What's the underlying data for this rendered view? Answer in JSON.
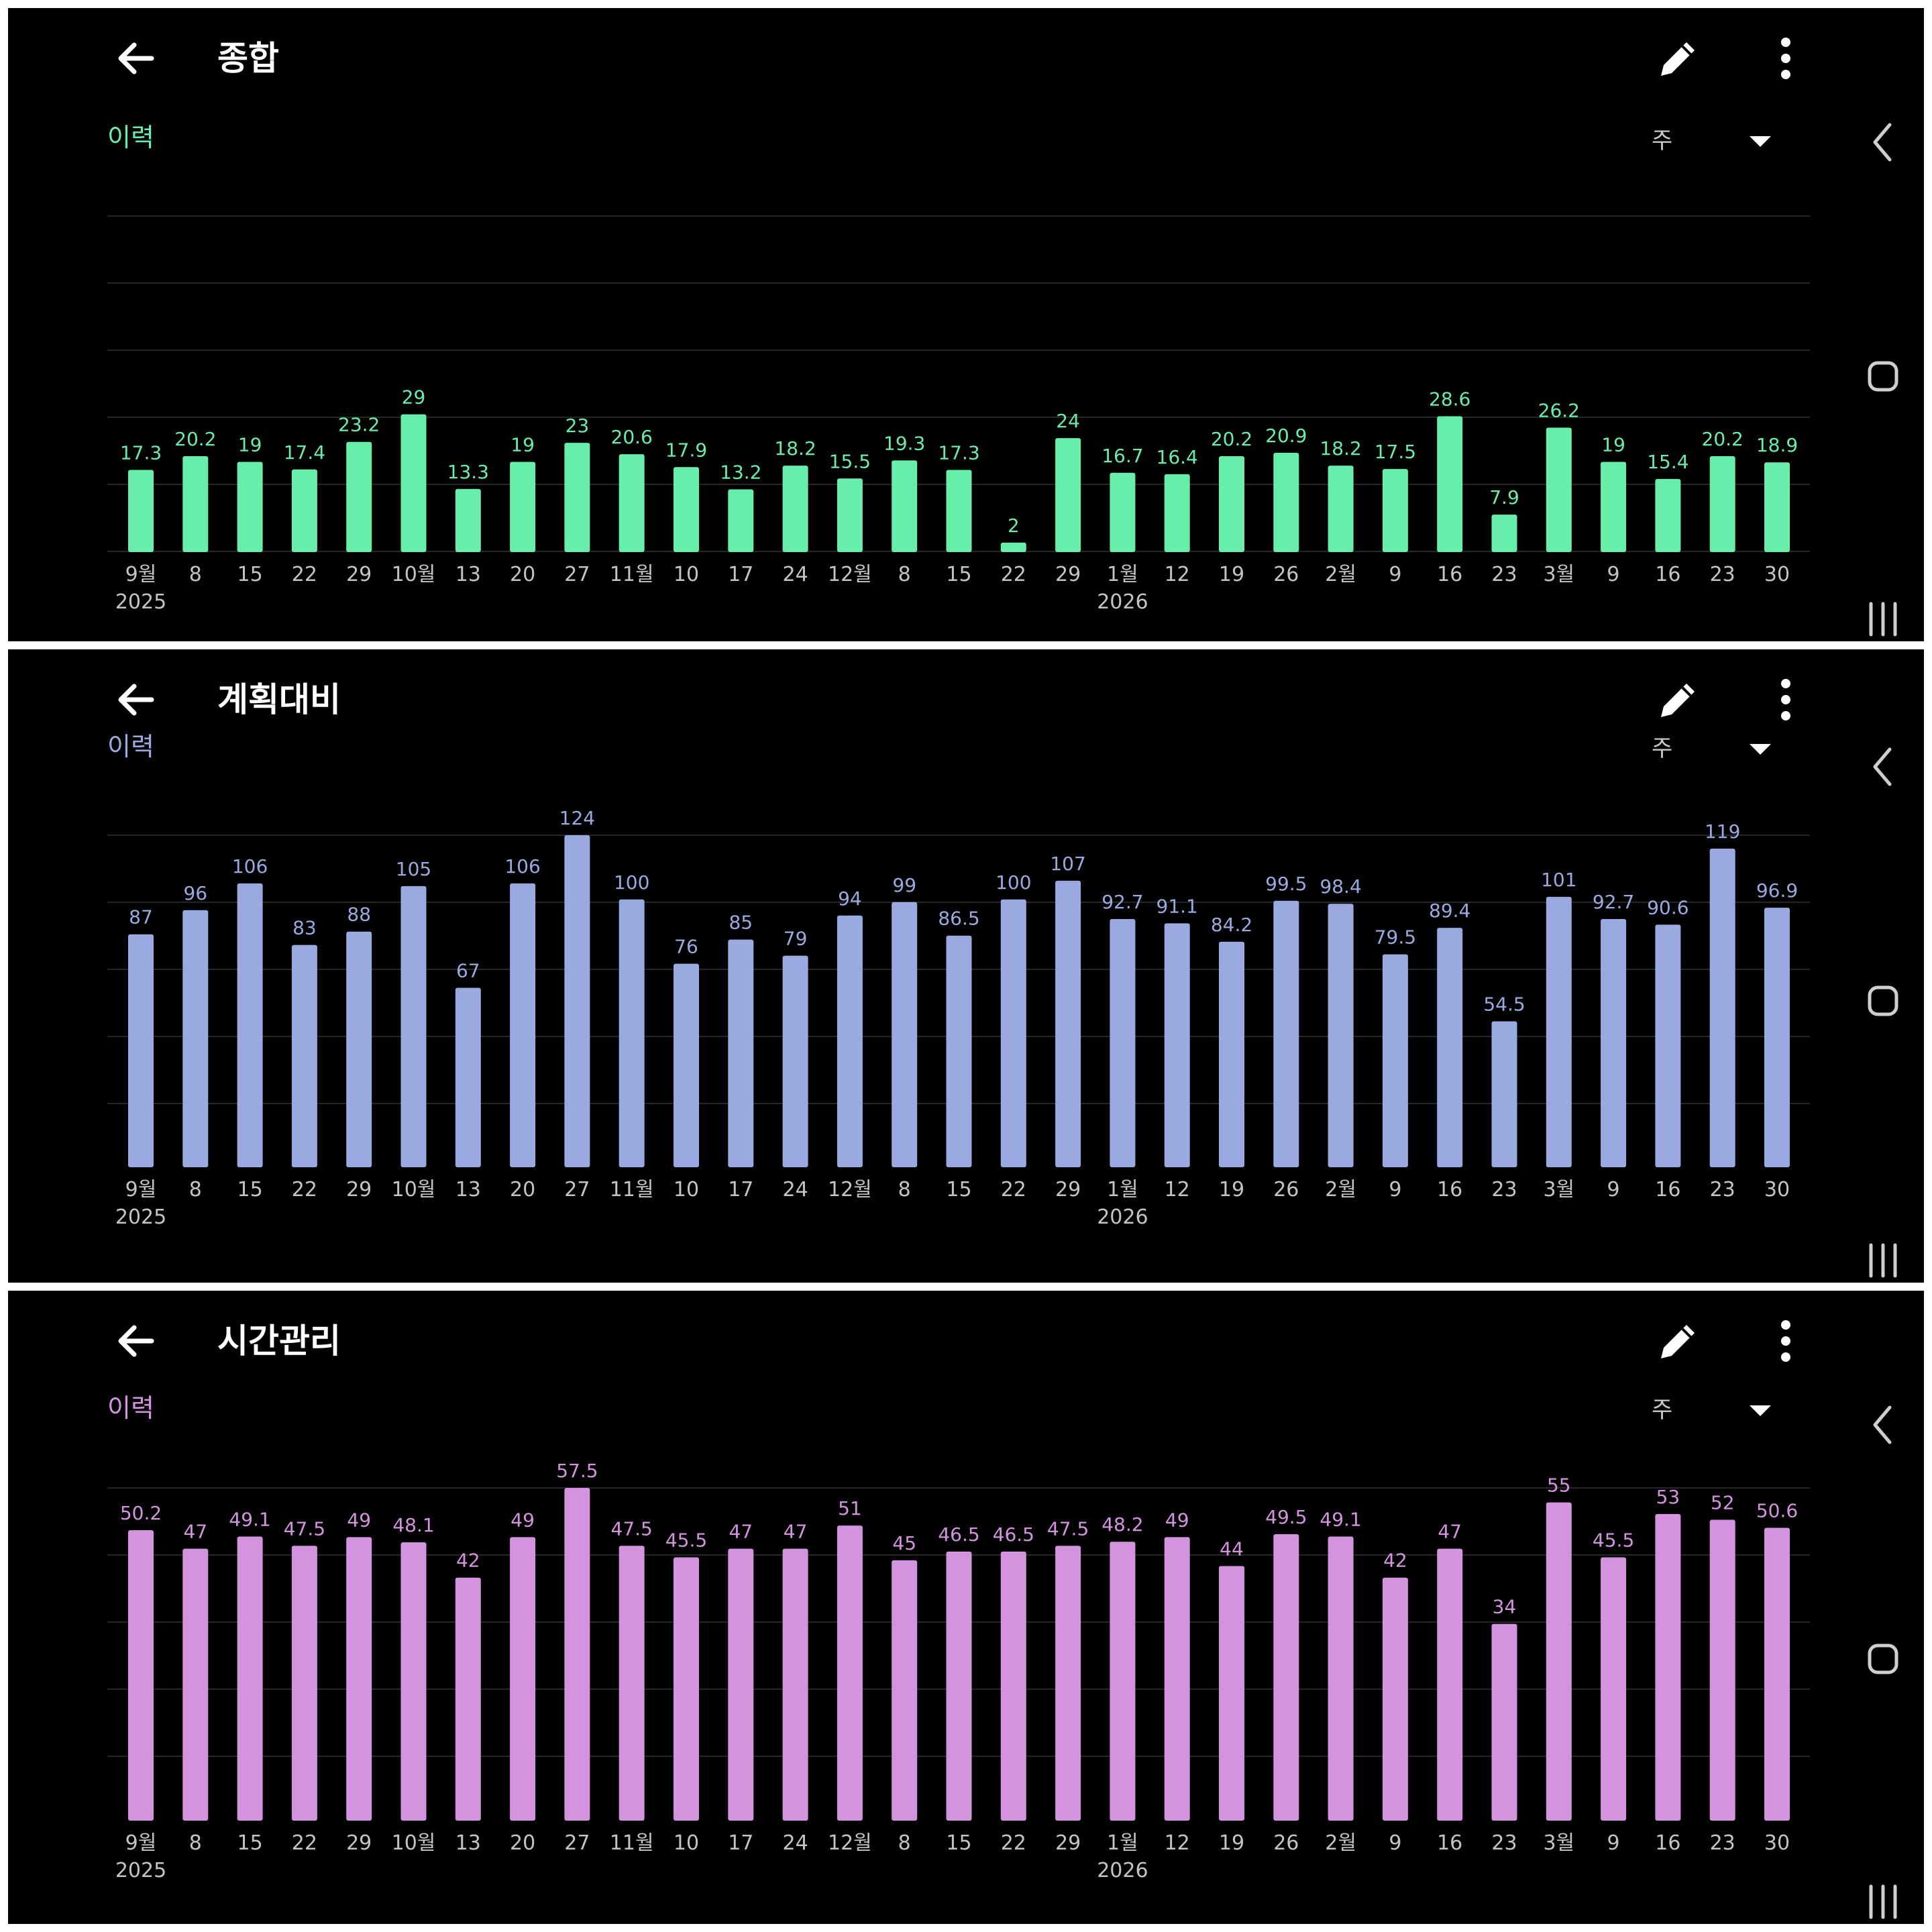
{
  "colors": {
    "panel_background": "#000000",
    "grid": "#262626",
    "axis_text": "#c4c4c4",
    "icon": "#ffffff"
  },
  "icons": {
    "back": "arrow-left-icon",
    "edit": "pencil-icon",
    "more": "more-vert-icon",
    "dropdown": "caret-down-icon",
    "nav_back": "chevron-left-icon",
    "nav_home": "rounded-square-icon",
    "nav_recent": "three-lines-icon"
  },
  "panels": [
    {
      "title": "종합",
      "history_label": "이력",
      "period": "주",
      "accent": "#66eeaa"
    },
    {
      "title": "계획대비",
      "history_label": "이력",
      "period": "주",
      "accent": "#9aaae0"
    },
    {
      "title": "시간관리",
      "history_label": "이력",
      "period": "주",
      "accent": "#d493df"
    }
  ],
  "chart_data": [
    {
      "type": "bar",
      "title": "",
      "xlabel": "",
      "ylabel": "",
      "grid": true,
      "ylim": [
        0,
        50
      ],
      "categories": [
        "9월",
        "8",
        "15",
        "22",
        "29",
        "10월",
        "13",
        "20",
        "27",
        "11월",
        "10",
        "17",
        "24",
        "12월",
        "8",
        "15",
        "22",
        "29",
        "1월",
        "12",
        "19",
        "26",
        "2월",
        "9",
        "16",
        "23",
        "3월",
        "9",
        "16",
        "23",
        "30"
      ],
      "year_labels": [
        {
          "index": 0,
          "label": "2025"
        },
        {
          "index": 18,
          "label": "2026"
        }
      ],
      "values": [
        17.3,
        20.2,
        19,
        17.4,
        23.2,
        29,
        13.3,
        19,
        23,
        20.6,
        17.9,
        13.2,
        18.2,
        15.5,
        19.3,
        17.3,
        2,
        24,
        16.7,
        16.4,
        20.2,
        20.9,
        18.2,
        17.5,
        28.6,
        7.9,
        26.2,
        19,
        15.4,
        20.2,
        18.9
      ],
      "value_labels": [
        "17.3",
        "20.2",
        "19",
        "17.4",
        "23.2",
        "29",
        "13.3",
        "19",
        "23",
        "20.6",
        "17.9",
        "13.2",
        "18.2",
        "15.5",
        "19.3",
        "17.3",
        "2",
        "24",
        "16.7",
        "16.4",
        "20.2",
        "20.9",
        "18.2",
        "17.5",
        "28.6",
        "7.9",
        "26.2",
        "19",
        "15.4",
        "20.2",
        "18.9"
      ]
    },
    {
      "type": "bar",
      "title": "",
      "xlabel": "",
      "ylabel": "",
      "grid": true,
      "ylim": [
        0,
        124
      ],
      "categories": [
        "9월",
        "8",
        "15",
        "22",
        "29",
        "10월",
        "13",
        "20",
        "27",
        "11월",
        "10",
        "17",
        "24",
        "12월",
        "8",
        "15",
        "22",
        "29",
        "1월",
        "12",
        "19",
        "26",
        "2월",
        "9",
        "16",
        "23",
        "3월",
        "9",
        "16",
        "23",
        "30"
      ],
      "year_labels": [
        {
          "index": 0,
          "label": "2025"
        },
        {
          "index": 18,
          "label": "2026"
        }
      ],
      "values": [
        87,
        96,
        106,
        83,
        88,
        105,
        67,
        106,
        124,
        100,
        76,
        85,
        79,
        94,
        99,
        86.5,
        100,
        107,
        92.7,
        91.1,
        84.2,
        99.5,
        98.4,
        79.5,
        89.4,
        54.5,
        101,
        92.7,
        90.6,
        119,
        96.9
      ],
      "value_labels": [
        "87",
        "96",
        "106",
        "83",
        "88",
        "105",
        "67",
        "106",
        "124",
        "100",
        "76",
        "85",
        "79",
        "94",
        "99",
        "86.5",
        "100",
        "107",
        "92.7",
        "91.1",
        "84.2",
        "99.5",
        "98.4",
        "79.5",
        "89.4",
        "54.5",
        "101",
        "92.7",
        "90.6",
        "119",
        "96.9"
      ]
    },
    {
      "type": "bar",
      "title": "",
      "xlabel": "",
      "ylabel": "",
      "grid": true,
      "ylim": [
        0,
        57.5
      ],
      "categories": [
        "9월",
        "8",
        "15",
        "22",
        "29",
        "10월",
        "13",
        "20",
        "27",
        "11월",
        "10",
        "17",
        "24",
        "12월",
        "8",
        "15",
        "22",
        "29",
        "1월",
        "12",
        "19",
        "26",
        "2월",
        "9",
        "16",
        "23",
        "3월",
        "9",
        "16",
        "23",
        "30"
      ],
      "year_labels": [
        {
          "index": 0,
          "label": "2025"
        },
        {
          "index": 18,
          "label": "2026"
        }
      ],
      "values": [
        50.2,
        47,
        49.1,
        47.5,
        49,
        48.1,
        42,
        49,
        57.5,
        47.5,
        45.5,
        47,
        47,
        51,
        45,
        46.5,
        46.5,
        47.5,
        48.2,
        49,
        44,
        49.5,
        49.1,
        42,
        47,
        34,
        55,
        45.5,
        53,
        52,
        50.6
      ],
      "value_labels": [
        "50.2",
        "47",
        "49.1",
        "47.5",
        "49",
        "48.1",
        "42",
        "49",
        "57.5",
        "47.5",
        "45.5",
        "47",
        "47",
        "51",
        "45",
        "46.5",
        "46.5",
        "47.5",
        "48.2",
        "49",
        "44",
        "49.5",
        "49.1",
        "42",
        "47",
        "34",
        "55",
        "45.5",
        "53",
        "52",
        "50.6"
      ]
    }
  ]
}
